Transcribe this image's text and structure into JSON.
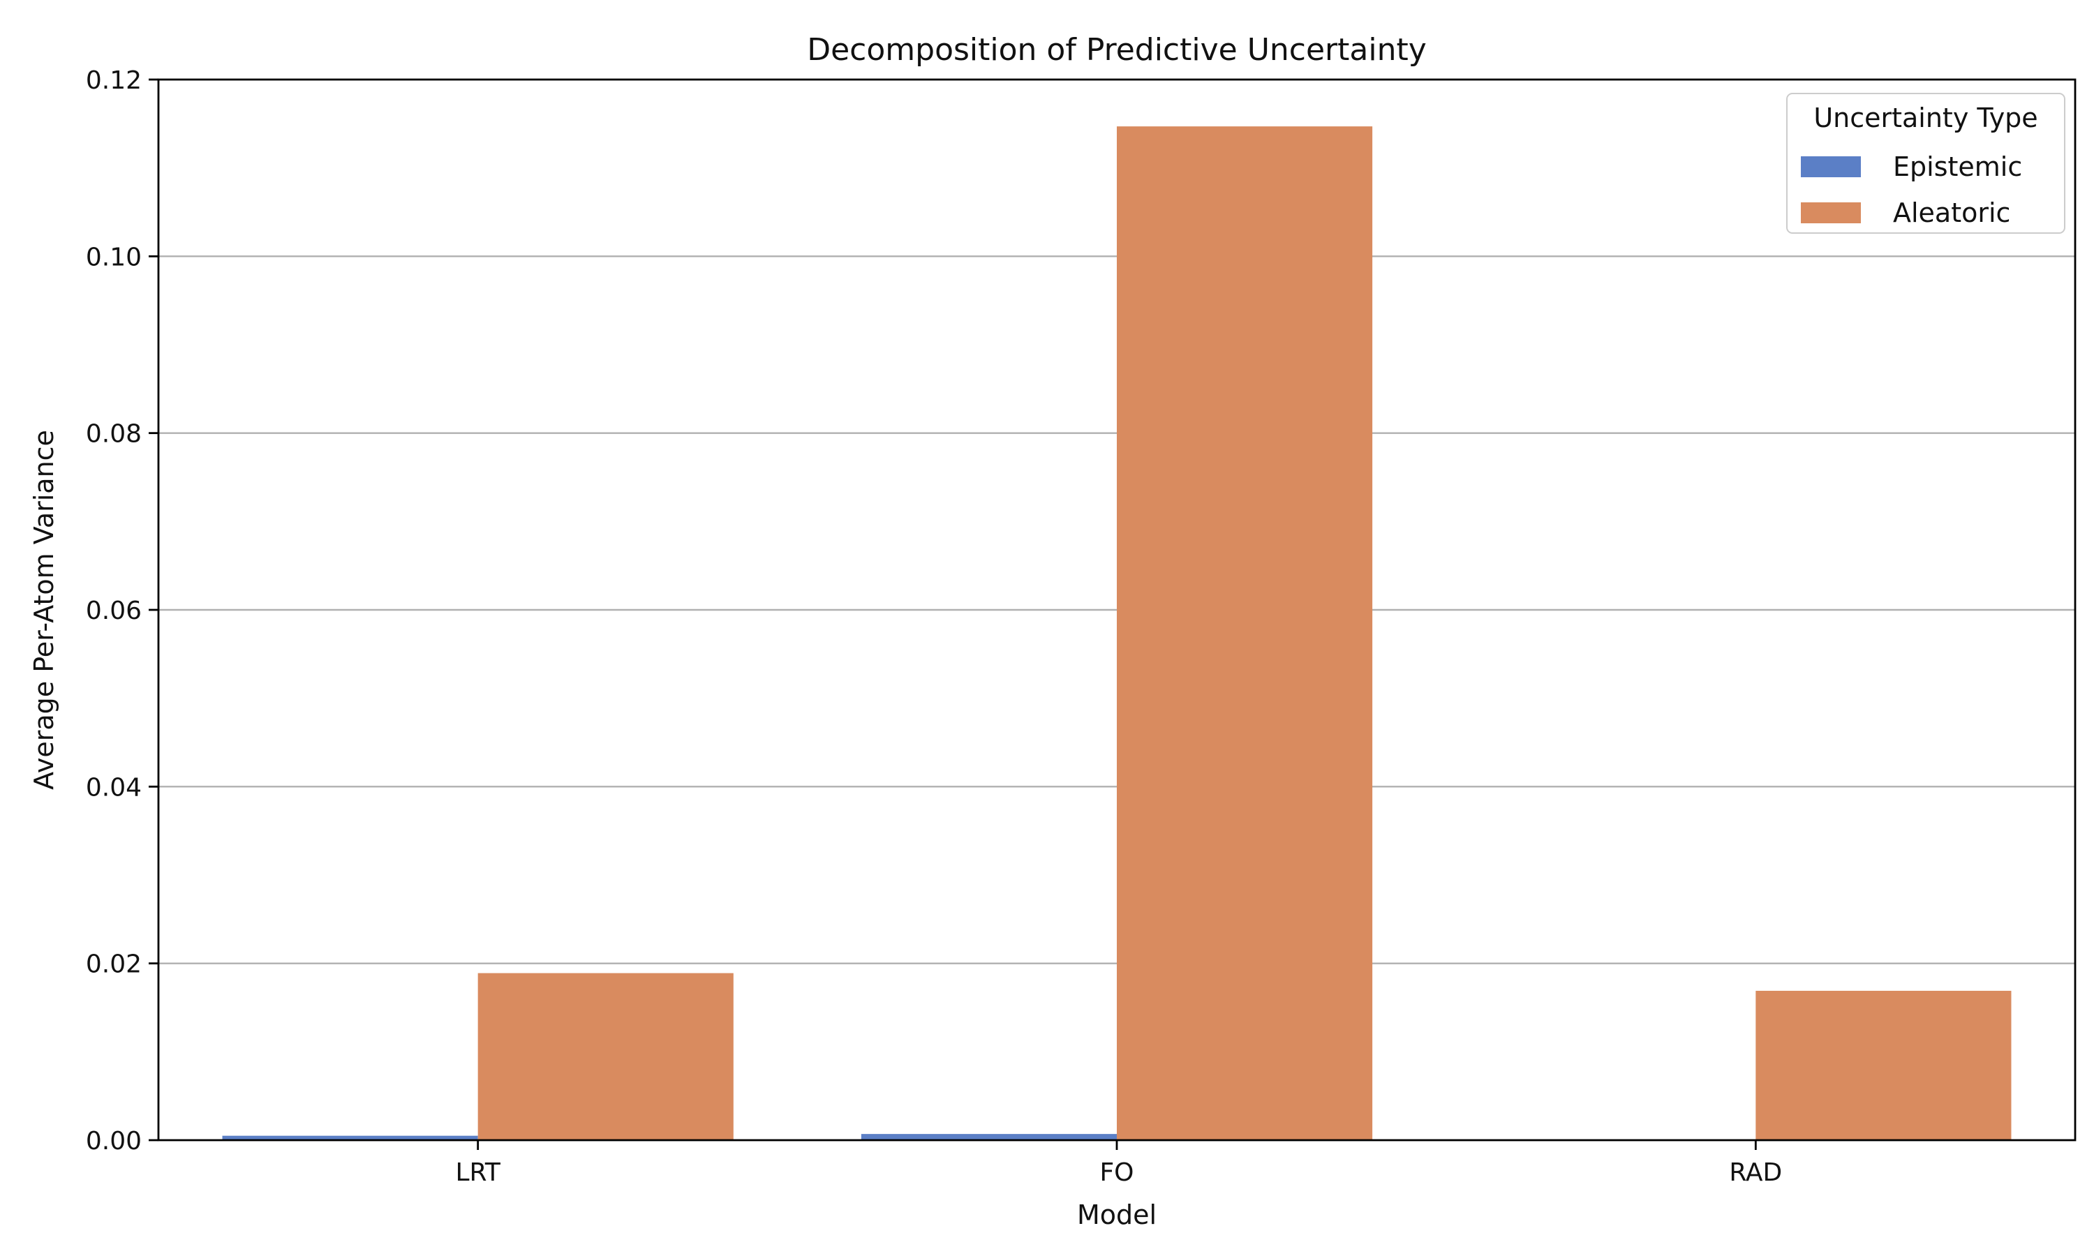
{
  "chart_data": {
    "type": "bar",
    "title": "Decomposition of Predictive Uncertainty",
    "xlabel": "Model",
    "ylabel": "Average Per-Atom Variance",
    "categories": [
      "LRT",
      "FO",
      "RAD"
    ],
    "series": [
      {
        "name": "Epistemic",
        "color": "#5b7fc6",
        "values": [
          0.0005,
          0.0007,
          0.0
        ]
      },
      {
        "name": "Aleatoric",
        "color": "#d98b5f",
        "values": [
          0.0189,
          0.1147,
          0.0169
        ]
      }
    ],
    "ylim": [
      0,
      0.12
    ],
    "yticks": [
      "0.00",
      "0.02",
      "0.04",
      "0.06",
      "0.08",
      "0.10",
      "0.12"
    ],
    "grid": "y",
    "legend": {
      "title": "Uncertainty Type",
      "placement": "top-right"
    }
  }
}
